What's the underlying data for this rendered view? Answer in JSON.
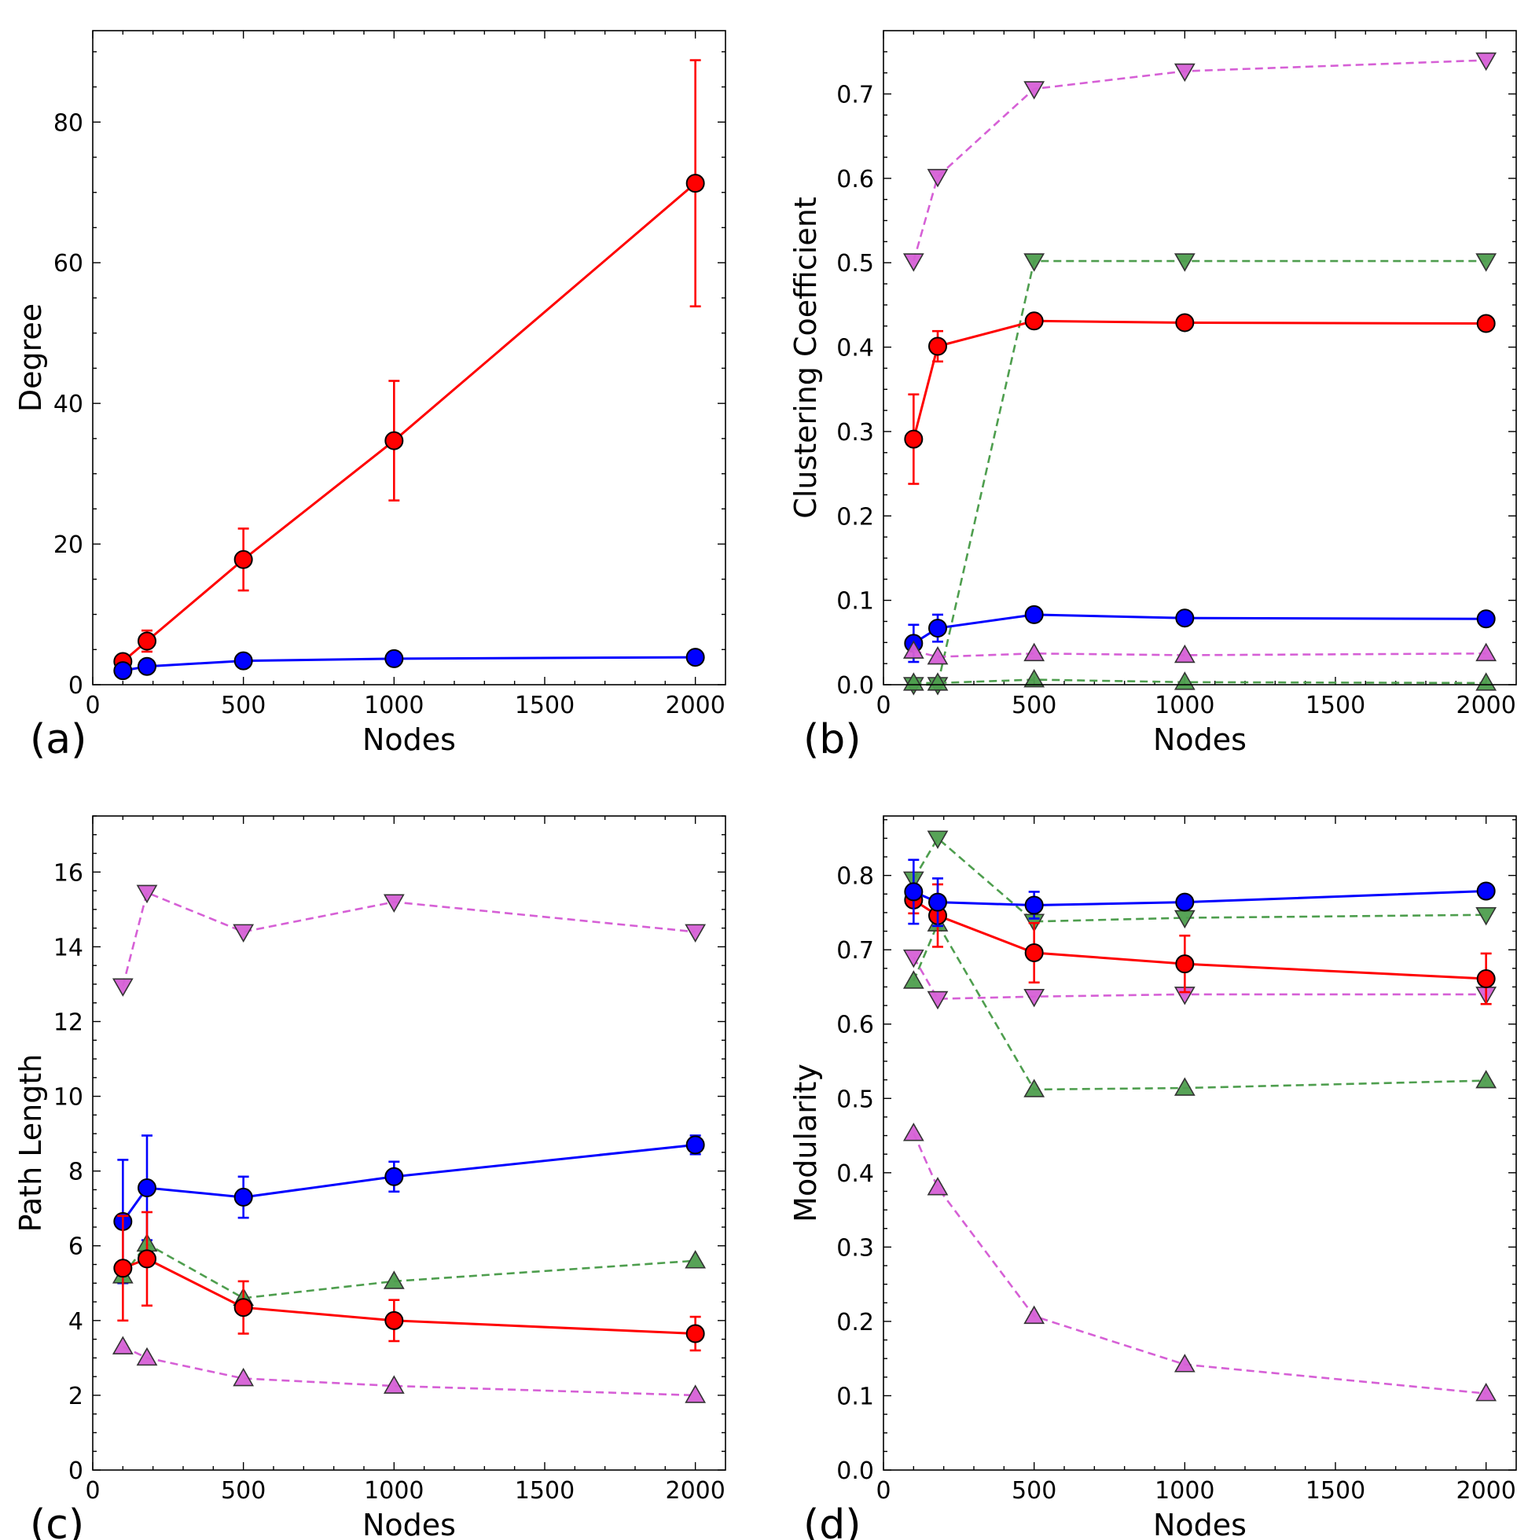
{
  "figure": {
    "colors": {
      "red": "#ff0000",
      "blue": "#0000ff",
      "green": "#4e9e4e",
      "magenta": "#d660d6"
    }
  },
  "chart_data": [
    {
      "type": "line",
      "panel_label": "(a)",
      "xlabel": "Nodes",
      "ylabel": "Degree",
      "xlim": [
        0,
        2100
      ],
      "ylim": [
        0,
        93
      ],
      "xticks": [
        0,
        500,
        1000,
        1500,
        2000
      ],
      "yticks": [
        0,
        20,
        40,
        60,
        80
      ],
      "series": [
        {
          "color": "#ff0000",
          "marker": "circle",
          "dash": false,
          "x": [
            100,
            180,
            500,
            1000,
            2000
          ],
          "y": [
            3.3,
            6.2,
            17.8,
            34.7,
            71.3
          ],
          "err": [
            0.6,
            1.5,
            4.4,
            8.5,
            17.5
          ]
        },
        {
          "color": "#0000ff",
          "marker": "circle",
          "dash": false,
          "x": [
            100,
            180,
            500,
            1000,
            2000
          ],
          "y": [
            2.0,
            2.6,
            3.4,
            3.7,
            3.9
          ],
          "err": [
            0,
            0,
            0,
            0,
            0
          ]
        }
      ]
    },
    {
      "type": "line",
      "panel_label": "(b)",
      "xlabel": "Nodes",
      "ylabel": "Clustering Coefficient",
      "xlim": [
        0,
        2100
      ],
      "ylim": [
        0,
        0.775
      ],
      "xticks": [
        0,
        500,
        1000,
        1500,
        2000
      ],
      "yticks": [
        0.0,
        0.1,
        0.2,
        0.3,
        0.4,
        0.5,
        0.6,
        0.7
      ],
      "ytick_labels": [
        "0.0",
        "0.1",
        "0.2",
        "0.3",
        "0.4",
        "0.5",
        "0.6",
        "0.7"
      ],
      "series": [
        {
          "color": "#d660d6",
          "marker": "triangle-down",
          "dash": true,
          "x": [
            100,
            180,
            500,
            1000,
            2000
          ],
          "y": [
            0.502,
            0.602,
            0.706,
            0.727,
            0.74
          ]
        },
        {
          "color": "#4e9e4e",
          "marker": "triangle-down",
          "dash": true,
          "x": [
            100,
            180,
            500,
            1000,
            2000
          ],
          "y": [
            0.0,
            0.0,
            0.502,
            0.502,
            0.502
          ]
        },
        {
          "color": "#ff0000",
          "marker": "circle",
          "dash": false,
          "x": [
            100,
            180,
            500,
            1000,
            2000
          ],
          "y": [
            0.291,
            0.401,
            0.431,
            0.429,
            0.428
          ],
          "err": [
            0.053,
            0.018,
            0,
            0,
            0
          ]
        },
        {
          "color": "#0000ff",
          "marker": "circle",
          "dash": false,
          "x": [
            100,
            180,
            500,
            1000,
            2000
          ],
          "y": [
            0.049,
            0.067,
            0.083,
            0.079,
            0.078
          ],
          "err": [
            0.022,
            0.016,
            0.008,
            0.004,
            0.003
          ]
        },
        {
          "color": "#d660d6",
          "marker": "triangle-up",
          "dash": true,
          "x": [
            100,
            180,
            500,
            1000,
            2000
          ],
          "y": [
            0.04,
            0.033,
            0.037,
            0.035,
            0.037
          ]
        },
        {
          "color": "#4e9e4e",
          "marker": "triangle-up",
          "dash": true,
          "x": [
            100,
            180,
            500,
            1000,
            2000
          ],
          "y": [
            0.002,
            0.002,
            0.006,
            0.003,
            0.002
          ]
        }
      ]
    },
    {
      "type": "line",
      "panel_label": "(c)",
      "xlabel": "Nodes",
      "ylabel": "Path Length",
      "xlim": [
        0,
        2100
      ],
      "ylim": [
        0,
        17.5
      ],
      "xticks": [
        0,
        500,
        1000,
        1500,
        2000
      ],
      "yticks": [
        0,
        2,
        4,
        6,
        8,
        10,
        12,
        14,
        16
      ],
      "series": [
        {
          "color": "#d660d6",
          "marker": "triangle-down",
          "dash": true,
          "x": [
            100,
            180,
            500,
            1000,
            2000
          ],
          "y": [
            12.95,
            15.45,
            14.4,
            15.2,
            14.4
          ]
        },
        {
          "color": "#0000ff",
          "marker": "circle",
          "dash": false,
          "x": [
            100,
            180,
            500,
            1000,
            2000
          ],
          "y": [
            6.65,
            7.55,
            7.3,
            7.85,
            8.7
          ],
          "err": [
            1.65,
            1.4,
            0.55,
            0.4,
            0.25
          ]
        },
        {
          "color": "#4e9e4e",
          "marker": "triangle-up",
          "dash": true,
          "x": [
            100,
            180,
            500,
            1000,
            2000
          ],
          "y": [
            5.2,
            6.05,
            4.6,
            5.05,
            5.6
          ]
        },
        {
          "color": "#ff0000",
          "marker": "circle",
          "dash": false,
          "x": [
            100,
            180,
            500,
            1000,
            2000
          ],
          "y": [
            5.4,
            5.65,
            4.35,
            4.0,
            3.65
          ],
          "err": [
            1.4,
            1.25,
            0.7,
            0.55,
            0.45
          ]
        },
        {
          "color": "#d660d6",
          "marker": "triangle-up",
          "dash": true,
          "x": [
            100,
            180,
            500,
            1000,
            2000
          ],
          "y": [
            3.3,
            3.0,
            2.45,
            2.25,
            2.0
          ]
        }
      ]
    },
    {
      "type": "line",
      "panel_label": "(d)",
      "xlabel": "Nodes",
      "ylabel": "Modularity",
      "xlim": [
        0,
        2100
      ],
      "ylim": [
        0,
        0.88
      ],
      "xticks": [
        0,
        500,
        1000,
        1500,
        2000
      ],
      "yticks": [
        0.0,
        0.1,
        0.2,
        0.3,
        0.4,
        0.5,
        0.6,
        0.7,
        0.8
      ],
      "ytick_labels": [
        "0.0",
        "0.1",
        "0.2",
        "0.3",
        "0.4",
        "0.5",
        "0.6",
        "0.7",
        "0.8"
      ],
      "series": [
        {
          "color": "#4e9e4e",
          "marker": "triangle-down",
          "dash": true,
          "x": [
            100,
            180,
            500,
            1000,
            2000
          ],
          "y": [
            0.795,
            0.85,
            0.738,
            0.743,
            0.747
          ]
        },
        {
          "color": "#4e9e4e",
          "marker": "triangle-up",
          "dash": true,
          "x": [
            100,
            180,
            500,
            1000,
            2000
          ],
          "y": [
            0.658,
            0.735,
            0.512,
            0.514,
            0.524
          ]
        },
        {
          "color": "#d660d6",
          "marker": "triangle-down",
          "dash": true,
          "x": [
            100,
            180,
            500,
            1000,
            2000
          ],
          "y": [
            0.69,
            0.634,
            0.637,
            0.64,
            0.64
          ]
        },
        {
          "color": "#ff0000",
          "marker": "circle",
          "dash": false,
          "x": [
            100,
            180,
            500,
            1000,
            2000
          ],
          "y": [
            0.767,
            0.746,
            0.696,
            0.681,
            0.661
          ],
          "err": [
            0.018,
            0.042,
            0.04,
            0.038,
            0.034
          ]
        },
        {
          "color": "#0000ff",
          "marker": "circle",
          "dash": false,
          "x": [
            100,
            180,
            500,
            1000,
            2000
          ],
          "y": [
            0.778,
            0.764,
            0.76,
            0.764,
            0.779
          ],
          "err": [
            0.043,
            0.032,
            0.018,
            0.006,
            0.004
          ]
        },
        {
          "color": "#d660d6",
          "marker": "triangle-up",
          "dash": true,
          "x": [
            100,
            180,
            500,
            1000,
            2000
          ],
          "y": [
            0.453,
            0.38,
            0.207,
            0.142,
            0.103
          ]
        }
      ]
    }
  ]
}
